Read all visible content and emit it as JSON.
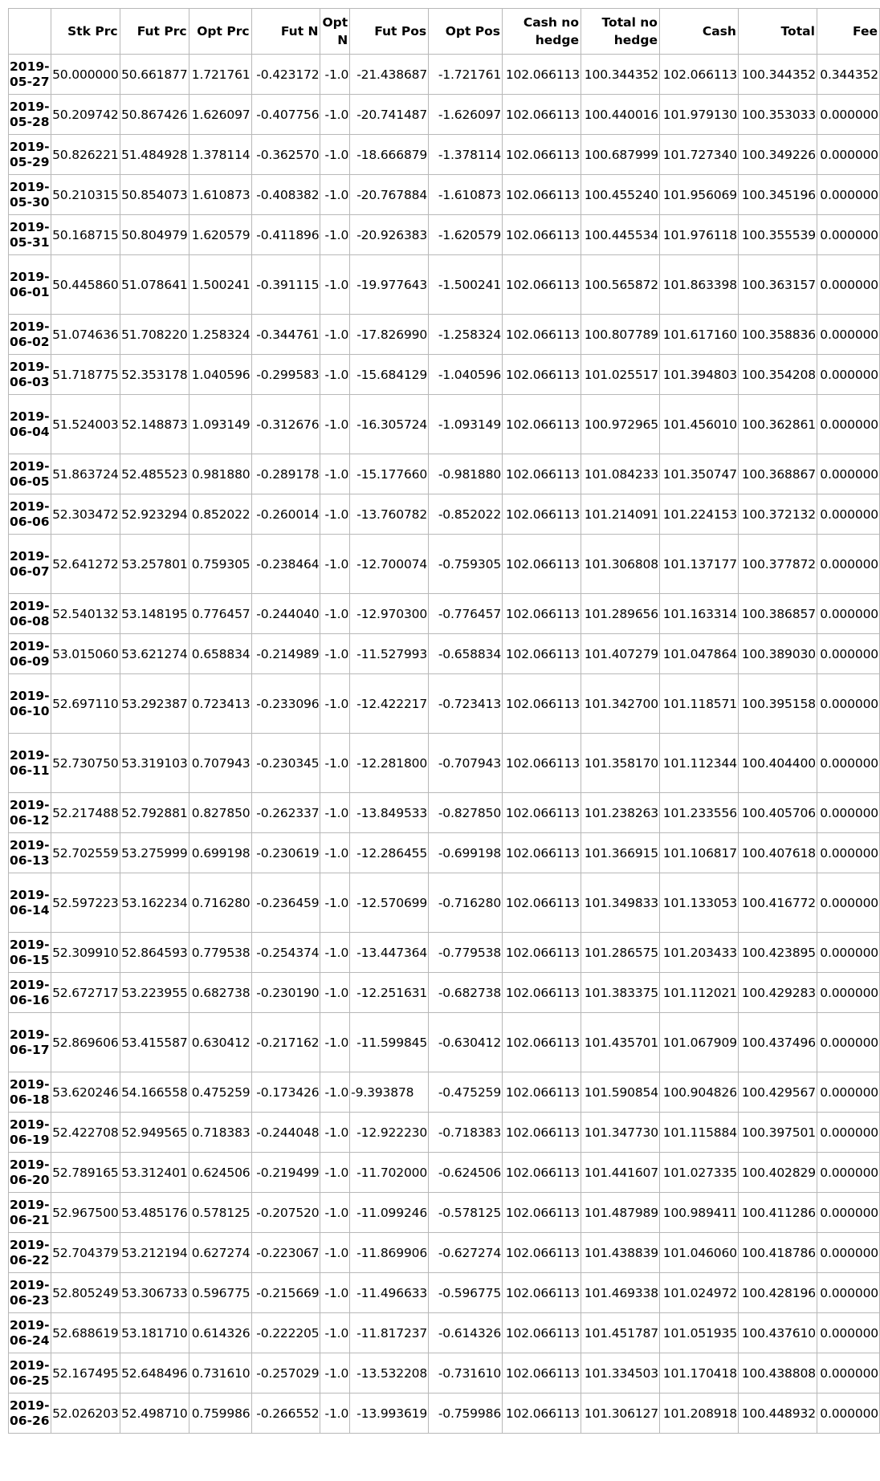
{
  "table": {
    "columns": [
      "",
      "Stk Prc",
      "Fut Prc",
      "Opt Prc",
      "Fut N",
      "Opt N",
      "Fut Pos",
      "Opt Pos",
      "Cash no hedge",
      "Total no hedge",
      "Cash",
      "Total",
      "Fee"
    ],
    "rows": [
      {
        "date": "2019-05-27",
        "cells": [
          "50.000000",
          "50.661877",
          "1.721761",
          "-0.423172",
          "-1.0",
          "-21.438687",
          "-1.721761",
          "102.066113",
          "100.344352",
          "102.066113",
          "100.344352",
          "0.344352"
        ]
      },
      {
        "date": "2019-05-28",
        "cells": [
          "50.209742",
          "50.867426",
          "1.626097",
          "-0.407756",
          "-1.0",
          "-20.741487",
          "-1.626097",
          "102.066113",
          "100.440016",
          "101.979130",
          "100.353033",
          "0.000000"
        ]
      },
      {
        "date": "2019-05-29",
        "cells": [
          "50.826221",
          "51.484928",
          "1.378114",
          "-0.362570",
          "-1.0",
          "-18.666879",
          "-1.378114",
          "102.066113",
          "100.687999",
          "101.727340",
          "100.349226",
          "0.000000"
        ]
      },
      {
        "date": "2019-05-30",
        "cells": [
          "50.210315",
          "50.854073",
          "1.610873",
          "-0.408382",
          "-1.0",
          "-20.767884",
          "-1.610873",
          "102.066113",
          "100.455240",
          "101.956069",
          "100.345196",
          "0.000000"
        ]
      },
      {
        "date": "2019-05-31",
        "cells": [
          "50.168715",
          "50.804979",
          "1.620579",
          "-0.411896",
          "-1.0",
          "-20.926383",
          "-1.620579",
          "102.066113",
          "100.445534",
          "101.976118",
          "100.355539",
          "0.000000"
        ]
      },
      {
        "date": "2019-06-01",
        "cells": [
          "50.445860",
          "51.078641",
          "1.500241",
          "-0.391115",
          "-1.0",
          "-19.977643",
          "-1.500241",
          "102.066113",
          "100.565872",
          "101.863398",
          "100.363157",
          "0.000000"
        ]
      },
      {
        "date": "2019-06-02",
        "cells": [
          "51.074636",
          "51.708220",
          "1.258324",
          "-0.344761",
          "-1.0",
          "-17.826990",
          "-1.258324",
          "102.066113",
          "100.807789",
          "101.617160",
          "100.358836",
          "0.000000"
        ]
      },
      {
        "date": "2019-06-03",
        "cells": [
          "51.718775",
          "52.353178",
          "1.040596",
          "-0.299583",
          "-1.0",
          "-15.684129",
          "-1.040596",
          "102.066113",
          "101.025517",
          "101.394803",
          "100.354208",
          "0.000000"
        ]
      },
      {
        "date": "2019-06-04",
        "cells": [
          "51.524003",
          "52.148873",
          "1.093149",
          "-0.312676",
          "-1.0",
          "-16.305724",
          "-1.093149",
          "102.066113",
          "100.972965",
          "101.456010",
          "100.362861",
          "0.000000"
        ]
      },
      {
        "date": "2019-06-05",
        "cells": [
          "51.863724",
          "52.485523",
          "0.981880",
          "-0.289178",
          "-1.0",
          "-15.177660",
          "-0.981880",
          "102.066113",
          "101.084233",
          "101.350747",
          "100.368867",
          "0.000000"
        ]
      },
      {
        "date": "2019-06-06",
        "cells": [
          "52.303472",
          "52.923294",
          "0.852022",
          "-0.260014",
          "-1.0",
          "-13.760782",
          "-0.852022",
          "102.066113",
          "101.214091",
          "101.224153",
          "100.372132",
          "0.000000"
        ]
      },
      {
        "date": "2019-06-07",
        "cells": [
          "52.641272",
          "53.257801",
          "0.759305",
          "-0.238464",
          "-1.0",
          "-12.700074",
          "-0.759305",
          "102.066113",
          "101.306808",
          "101.137177",
          "100.377872",
          "0.000000"
        ]
      },
      {
        "date": "2019-06-08",
        "cells": [
          "52.540132",
          "53.148195",
          "0.776457",
          "-0.244040",
          "-1.0",
          "-12.970300",
          "-0.776457",
          "102.066113",
          "101.289656",
          "101.163314",
          "100.386857",
          "0.000000"
        ]
      },
      {
        "date": "2019-06-09",
        "cells": [
          "53.015060",
          "53.621274",
          "0.658834",
          "-0.214989",
          "-1.0",
          "-11.527993",
          "-0.658834",
          "102.066113",
          "101.407279",
          "101.047864",
          "100.389030",
          "0.000000"
        ]
      },
      {
        "date": "2019-06-10",
        "cells": [
          "52.697110",
          "53.292387",
          "0.723413",
          "-0.233096",
          "-1.0",
          "-12.422217",
          "-0.723413",
          "102.066113",
          "101.342700",
          "101.118571",
          "100.395158",
          "0.000000"
        ]
      },
      {
        "date": "2019-06-11",
        "cells": [
          "52.730750",
          "53.319103",
          "0.707943",
          "-0.230345",
          "-1.0",
          "-12.281800",
          "-0.707943",
          "102.066113",
          "101.358170",
          "101.112344",
          "100.404400",
          "0.000000"
        ]
      },
      {
        "date": "2019-06-12",
        "cells": [
          "52.217488",
          "52.792881",
          "0.827850",
          "-0.262337",
          "-1.0",
          "-13.849533",
          "-0.827850",
          "102.066113",
          "101.238263",
          "101.233556",
          "100.405706",
          "0.000000"
        ]
      },
      {
        "date": "2019-06-13",
        "cells": [
          "52.702559",
          "53.275999",
          "0.699198",
          "-0.230619",
          "-1.0",
          "-12.286455",
          "-0.699198",
          "102.066113",
          "101.366915",
          "101.106817",
          "100.407618",
          "0.000000"
        ]
      },
      {
        "date": "2019-06-14",
        "cells": [
          "52.597223",
          "53.162234",
          "0.716280",
          "-0.236459",
          "-1.0",
          "-12.570699",
          "-0.716280",
          "102.066113",
          "101.349833",
          "101.133053",
          "100.416772",
          "0.000000"
        ]
      },
      {
        "date": "2019-06-15",
        "cells": [
          "52.309910",
          "52.864593",
          "0.779538",
          "-0.254374",
          "-1.0",
          "-13.447364",
          "-0.779538",
          "102.066113",
          "101.286575",
          "101.203433",
          "100.423895",
          "0.000000"
        ]
      },
      {
        "date": "2019-06-16",
        "cells": [
          "52.672717",
          "53.223955",
          "0.682738",
          "-0.230190",
          "-1.0",
          "-12.251631",
          "-0.682738",
          "102.066113",
          "101.383375",
          "101.112021",
          "100.429283",
          "0.000000"
        ]
      },
      {
        "date": "2019-06-17",
        "cells": [
          "52.869606",
          "53.415587",
          "0.630412",
          "-0.217162",
          "-1.0",
          "-11.599845",
          "-0.630412",
          "102.066113",
          "101.435701",
          "101.067909",
          "100.437496",
          "0.000000"
        ]
      },
      {
        "date": "2019-06-18",
        "cells": [
          "53.620246",
          "54.166558",
          "0.475259",
          "-0.173426",
          "-1.0",
          "-9.393878",
          "-0.475259",
          "102.066113",
          "101.590854",
          "100.904826",
          "100.429567",
          "0.000000"
        ]
      },
      {
        "date": "2019-06-19",
        "cells": [
          "52.422708",
          "52.949565",
          "0.718383",
          "-0.244048",
          "-1.0",
          "-12.922230",
          "-0.718383",
          "102.066113",
          "101.347730",
          "101.115884",
          "100.397501",
          "0.000000"
        ]
      },
      {
        "date": "2019-06-20",
        "cells": [
          "52.789165",
          "53.312401",
          "0.624506",
          "-0.219499",
          "-1.0",
          "-11.702000",
          "-0.624506",
          "102.066113",
          "101.441607",
          "101.027335",
          "100.402829",
          "0.000000"
        ]
      },
      {
        "date": "2019-06-21",
        "cells": [
          "52.967500",
          "53.485176",
          "0.578125",
          "-0.207520",
          "-1.0",
          "-11.099246",
          "-0.578125",
          "102.066113",
          "101.487989",
          "100.989411",
          "100.411286",
          "0.000000"
        ]
      },
      {
        "date": "2019-06-22",
        "cells": [
          "52.704379",
          "53.212194",
          "0.627274",
          "-0.223067",
          "-1.0",
          "-11.869906",
          "-0.627274",
          "102.066113",
          "101.438839",
          "101.046060",
          "100.418786",
          "0.000000"
        ]
      },
      {
        "date": "2019-06-23",
        "cells": [
          "52.805249",
          "53.306733",
          "0.596775",
          "-0.215669",
          "-1.0",
          "-11.496633",
          "-0.596775",
          "102.066113",
          "101.469338",
          "101.024972",
          "100.428196",
          "0.000000"
        ]
      },
      {
        "date": "2019-06-24",
        "cells": [
          "52.688619",
          "53.181710",
          "0.614326",
          "-0.222205",
          "-1.0",
          "-11.817237",
          "-0.614326",
          "102.066113",
          "101.451787",
          "101.051935",
          "100.437610",
          "0.000000"
        ]
      },
      {
        "date": "2019-06-25",
        "cells": [
          "52.167495",
          "52.648496",
          "0.731610",
          "-0.257029",
          "-1.0",
          "-13.532208",
          "-0.731610",
          "102.066113",
          "101.334503",
          "101.170418",
          "100.438808",
          "0.000000"
        ]
      },
      {
        "date": "2019-06-26",
        "cells": [
          "52.026203",
          "52.498710",
          "0.759986",
          "-0.266552",
          "-1.0",
          "-13.993619",
          "-0.759986",
          "102.066113",
          "101.306127",
          "101.208918",
          "100.448932",
          "0.000000"
        ]
      }
    ]
  }
}
